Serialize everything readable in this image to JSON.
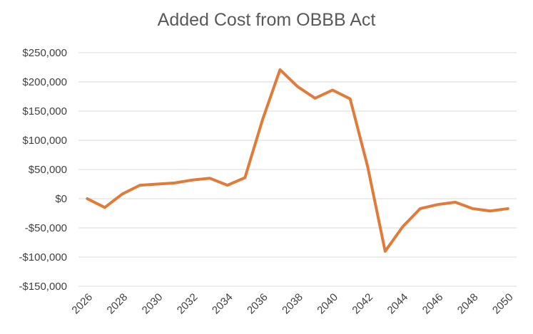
{
  "chart_data": {
    "type": "line",
    "title": "Added Cost from OBBB Act",
    "xlabel": "",
    "ylabel": "",
    "ylim": [
      -150000,
      250000
    ],
    "yticks": [
      {
        "value": 250000,
        "label": "$250,000"
      },
      {
        "value": 200000,
        "label": "$200,000"
      },
      {
        "value": 150000,
        "label": "$150,000"
      },
      {
        "value": 100000,
        "label": "$100,000"
      },
      {
        "value": 50000,
        "label": "$50,000"
      },
      {
        "value": 0,
        "label": "$0"
      },
      {
        "value": -50000,
        "label": "-$50,000"
      },
      {
        "value": -100000,
        "label": "-$100,000"
      },
      {
        "value": -150000,
        "label": "-$150,000"
      }
    ],
    "xticks": [
      "2026",
      "2028",
      "2030",
      "2032",
      "2034",
      "2036",
      "2038",
      "2040",
      "2042",
      "2044",
      "2046",
      "2048",
      "2050"
    ],
    "grid": true,
    "colors": {
      "line": "#E07B39",
      "grid": "#D9D9D9",
      "text": "#404040",
      "title": "#595959"
    },
    "series": [
      {
        "x": [
          2026,
          2027,
          2028,
          2029,
          2030,
          2031,
          2032,
          2033,
          2034,
          2035,
          2036,
          2037,
          2038,
          2039,
          2040,
          2041,
          2042,
          2043,
          2044,
          2045,
          2046,
          2047,
          2048,
          2049,
          2050
        ],
        "values": [
          0,
          -15000,
          8000,
          23000,
          25000,
          27000,
          32000,
          35000,
          23000,
          36000,
          135000,
          221000,
          192000,
          172000,
          186000,
          171000,
          55000,
          -90000,
          -48000,
          -17000,
          -10000,
          -6000,
          -17000,
          -21000,
          -17000
        ]
      }
    ]
  }
}
